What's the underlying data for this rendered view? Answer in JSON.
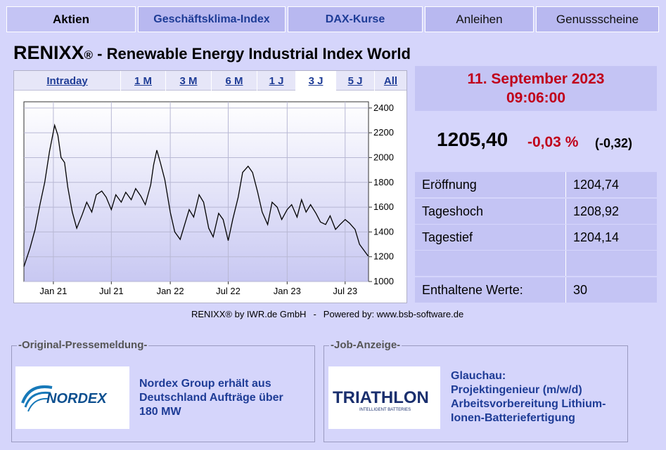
{
  "nav": {
    "tabs": [
      {
        "label": "Aktien"
      },
      {
        "label": "Geschäftsklima-Index"
      },
      {
        "label": "DAX-Kurse"
      },
      {
        "label": "Anleihen"
      },
      {
        "label": "Genussscheine"
      }
    ]
  },
  "header": {
    "brand": "RENIXX",
    "reg_mark": "®",
    "subtitle": " - Renewable Energy Industrial Index World"
  },
  "periods": [
    "Intraday",
    "1 M",
    "3 M",
    "6 M",
    "1 J",
    "3 J",
    "5 J",
    "All"
  ],
  "selected_period": "3 J",
  "chart_data": {
    "type": "line",
    "x_ticks": [
      "Jan 21",
      "Jul 21",
      "Jan 22",
      "Jul 22",
      "Jan 23",
      "Jul 23"
    ],
    "y_ticks": [
      1000,
      1200,
      1400,
      1600,
      1800,
      2000,
      2200,
      2400
    ],
    "ylim": [
      1000,
      2450
    ],
    "x_range": [
      "2020-10",
      "2023-09"
    ],
    "grid": true,
    "series": [
      {
        "x": [
          "2020-10-01",
          "2020-10-20",
          "2020-11-05",
          "2020-11-20",
          "2020-12-05",
          "2020-12-20",
          "2021-01-05",
          "2021-01-15",
          "2021-01-25",
          "2021-02-05",
          "2021-02-15",
          "2021-03-01",
          "2021-03-15",
          "2021-04-01",
          "2021-04-15",
          "2021-05-01",
          "2021-05-15",
          "2021-06-01",
          "2021-06-15",
          "2021-07-01",
          "2021-07-15",
          "2021-08-01",
          "2021-08-15",
          "2021-09-01",
          "2021-09-15",
          "2021-10-01",
          "2021-10-15",
          "2021-11-01",
          "2021-11-10",
          "2021-11-20",
          "2021-12-01",
          "2021-12-15",
          "2022-01-01",
          "2022-01-15",
          "2022-02-01",
          "2022-02-15",
          "2022-03-01",
          "2022-03-15",
          "2022-04-01",
          "2022-04-15",
          "2022-05-01",
          "2022-05-15",
          "2022-06-01",
          "2022-06-15",
          "2022-07-01",
          "2022-07-15",
          "2022-08-01",
          "2022-08-15",
          "2022-09-01",
          "2022-09-15",
          "2022-10-01",
          "2022-10-15",
          "2022-11-01",
          "2022-11-15",
          "2022-12-01",
          "2022-12-15",
          "2023-01-01",
          "2023-01-15",
          "2023-02-01",
          "2023-02-15",
          "2023-03-01",
          "2023-03-15",
          "2023-04-01",
          "2023-04-15",
          "2023-05-01",
          "2023-05-15",
          "2023-06-01",
          "2023-06-15",
          "2023-07-01",
          "2023-07-15",
          "2023-08-01",
          "2023-08-15",
          "2023-09-01",
          "2023-09-11"
        ],
        "values": [
          1120,
          1270,
          1420,
          1620,
          1800,
          2050,
          2260,
          2180,
          2000,
          1960,
          1760,
          1560,
          1430,
          1540,
          1640,
          1560,
          1700,
          1730,
          1680,
          1580,
          1700,
          1640,
          1720,
          1660,
          1750,
          1690,
          1620,
          1780,
          1940,
          2060,
          1960,
          1820,
          1560,
          1400,
          1340,
          1460,
          1580,
          1520,
          1700,
          1640,
          1430,
          1360,
          1550,
          1500,
          1330,
          1500,
          1680,
          1880,
          1930,
          1880,
          1720,
          1560,
          1460,
          1640,
          1600,
          1500,
          1580,
          1620,
          1520,
          1660,
          1560,
          1620,
          1550,
          1480,
          1460,
          1530,
          1420,
          1460,
          1500,
          1470,
          1420,
          1300,
          1240,
          1205
        ]
      }
    ]
  },
  "quote": {
    "date": "11. September  2023",
    "time": "09:06:00",
    "price": "1205,40",
    "change_pct": "-0,03 %",
    "change_abs": "(-0,32)"
  },
  "stats": [
    {
      "label": "Eröffnung",
      "value": "1204,74"
    },
    {
      "label": "Tageshoch",
      "value": "1208,92"
    },
    {
      "label": "Tagestief",
      "value": "1204,14"
    }
  ],
  "constituents": {
    "label": "Enthaltene Werte:",
    "value": "30"
  },
  "credit": {
    "left": "RENIXX® by IWR.de GmbH",
    "sep": "-",
    "right": "Powered by: www.bsb-software.de"
  },
  "press": {
    "legend": "-Original-Pressemeldung-",
    "logo_text": "NORDEX",
    "text": "Nordex Group erhält aus Deutschland Aufträge über 180 MW"
  },
  "job": {
    "legend": "-Job-Anzeige-",
    "logo_text": "TRIATHLON",
    "logo_sub": "INTELLIGENT BATTERIES",
    "title": "Glauchau:",
    "text": "Projektingenieur (m/w/d) Arbeitsvorbereitung Lithium-Ionen-Batteriefertigung"
  },
  "colors": {
    "accent_red": "#c0001a",
    "link_blue": "#1e3c96",
    "panel": "#c4c4f4",
    "background": "#d5d5fb"
  }
}
